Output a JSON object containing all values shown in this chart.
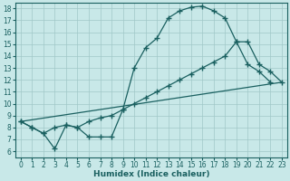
{
  "bg_color": "#c8e8e8",
  "grid_color": "#a0c8c8",
  "line_color": "#1a6060",
  "xlabel": "Humidex (Indice chaleur)",
  "xlim": [
    -0.5,
    23.5
  ],
  "ylim": [
    5.5,
    18.5
  ],
  "curve1_x": [
    0,
    1,
    2,
    3,
    4,
    5,
    6,
    7,
    8,
    9,
    10,
    11,
    12,
    13,
    14,
    15,
    16,
    17,
    18,
    19,
    20,
    21,
    22
  ],
  "curve1_y": [
    8.5,
    8.0,
    7.5,
    6.2,
    8.2,
    8.0,
    7.2,
    7.2,
    7.2,
    9.5,
    13.0,
    14.7,
    15.5,
    17.2,
    17.8,
    18.1,
    18.2,
    17.8,
    17.2,
    15.2,
    13.3,
    12.7,
    11.8
  ],
  "curve2_x": [
    0,
    1,
    2,
    3,
    4,
    5,
    6,
    7,
    8,
    9,
    10,
    11,
    12,
    13,
    14,
    15,
    16,
    17,
    18,
    19,
    20,
    21,
    22,
    23
  ],
  "curve2_y": [
    8.5,
    8.0,
    7.5,
    8.0,
    8.2,
    8.0,
    8.5,
    8.8,
    9.0,
    9.5,
    10.0,
    10.5,
    11.0,
    11.5,
    12.0,
    12.5,
    13.0,
    13.5,
    14.0,
    15.2,
    15.2,
    13.3,
    12.7,
    11.8
  ],
  "curve3_x": [
    0,
    23
  ],
  "curve3_y": [
    8.5,
    11.8
  ],
  "marker_style": "+",
  "marker_size": 4,
  "line_width": 0.9,
  "tick_fontsize": 5.5,
  "xlabel_fontsize": 6.5
}
